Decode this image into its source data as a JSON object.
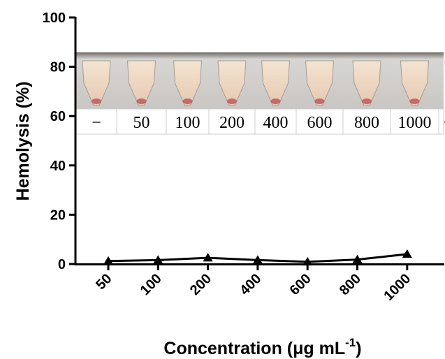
{
  "chart_data": {
    "type": "line",
    "title": "",
    "xlabel": "Concentration (μg mL",
    "xlabel_superscript": "-1",
    "xlabel_close": ")",
    "ylabel": "Hemolysis (%)",
    "ylim": [
      0,
      100
    ],
    "yticks": [
      "0",
      "20",
      "40",
      "60",
      "80",
      "100"
    ],
    "categories": [
      "50",
      "100",
      "200",
      "400",
      "600",
      "800",
      "1000"
    ],
    "series": [
      {
        "values": [
          1.2,
          1.6,
          2.5,
          1.6,
          0.9,
          1.8,
          4.0
        ],
        "color": "#000000",
        "marker": "triangle"
      }
    ],
    "grid": false
  },
  "inset_photo": {
    "labels": [
      "−",
      "50",
      "100",
      "200",
      "400",
      "600",
      "800",
      "1000",
      "+"
    ]
  }
}
